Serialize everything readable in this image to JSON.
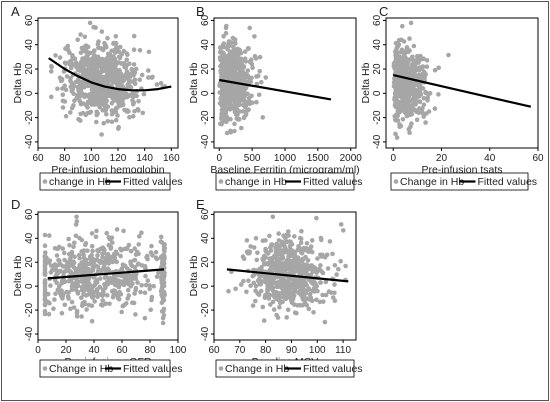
{
  "figure": {
    "colors": {
      "points": "#a6a6a6",
      "fit": "#000000",
      "frame": "#000000",
      "background": "#ffffff",
      "outer_frame": "#555555"
    }
  },
  "chart_data": [
    {
      "type": "scatter",
      "panel_letter": "A",
      "xlabel": "Pre-infusion hemoglobin",
      "ylabel": "Delta Hb",
      "xlim": [
        60,
        165
      ],
      "ylim": [
        -45,
        62
      ],
      "xticks": [
        60,
        80,
        100,
        120,
        140,
        160
      ],
      "yticks": [
        -40,
        -20,
        0,
        20,
        40,
        60
      ],
      "series": [
        {
          "name": "change in Hb",
          "kind": "points",
          "distribution": {
            "x_range": [
              70,
              155
            ],
            "x_center": 108,
            "x_spread": 15,
            "y_center": 10,
            "y_spread": 15,
            "y_min": -38,
            "y_max": 58,
            "count": 650
          }
        },
        {
          "name": "Fitted values",
          "kind": "line",
          "x": [
            68,
            80,
            90,
            100,
            110,
            120,
            130,
            140,
            150,
            160
          ],
          "y": [
            29,
            20,
            14,
            9,
            5.5,
            3.5,
            2.5,
            2.5,
            3.5,
            5.5
          ]
        }
      ],
      "legend": {
        "position": "bottom",
        "items": [
          "change in Hb",
          "Fitted values"
        ]
      }
    },
    {
      "type": "scatter",
      "panel_letter": "B",
      "xlabel": "Baseline Ferritin (microgram/ml)",
      "ylabel": "Delta Hb",
      "xlim": [
        -80,
        2080
      ],
      "ylim": [
        -45,
        62
      ],
      "xticks": [
        0,
        500,
        1000,
        1500,
        2000
      ],
      "yticks": [
        -40,
        -20,
        0,
        20,
        40,
        60
      ],
      "series": [
        {
          "name": "change in Hb",
          "kind": "points",
          "distribution": {
            "x_range": [
              0,
              1700
            ],
            "x_center": 120,
            "x_spread": 220,
            "y_center": 9,
            "y_spread": 15,
            "y_min": -38,
            "y_max": 58,
            "count": 600
          }
        },
        {
          "name": "Fitted values",
          "kind": "line",
          "x": [
            0,
            1700
          ],
          "y": [
            11,
            -5
          ]
        }
      ],
      "legend": {
        "position": "bottom",
        "items": [
          "change in Hb",
          "Fitted values"
        ]
      }
    },
    {
      "type": "scatter",
      "panel_letter": "C",
      "xlabel": "Pre-infusion tsats",
      "ylabel": "Delta Hb",
      "xlim": [
        -3,
        60
      ],
      "ylim": [
        -45,
        62
      ],
      "xticks": [
        0,
        20,
        40,
        60
      ],
      "yticks": [
        -40,
        -20,
        0,
        20,
        40,
        60
      ],
      "series": [
        {
          "name": "Change in Hb",
          "kind": "points",
          "distribution": {
            "x_range": [
              0,
              57
            ],
            "x_center": 10,
            "x_spread": 6,
            "y_center": 9,
            "y_spread": 15,
            "y_min": -40,
            "y_max": 58,
            "count": 600
          }
        },
        {
          "name": "Fitted values",
          "kind": "line",
          "x": [
            0,
            57
          ],
          "y": [
            15,
            -11
          ]
        }
      ],
      "legend": {
        "position": "bottom",
        "items": [
          "Change in Hb",
          "Fitted values"
        ]
      }
    },
    {
      "type": "scatter",
      "panel_letter": "D",
      "xlabel": "Pre-infusion eGFR",
      "ylabel": "Delta Hb",
      "xlim": [
        0,
        100
      ],
      "ylim": [
        -45,
        62
      ],
      "xticks": [
        0,
        20,
        40,
        60,
        80,
        100
      ],
      "yticks": [
        -40,
        -20,
        0,
        20,
        40,
        60
      ],
      "series": [
        {
          "name": "Change in Hb",
          "kind": "points",
          "distribution": {
            "x_range": [
              5,
              90
            ],
            "x_center": 40,
            "x_spread": 22,
            "y_center": 10,
            "y_spread": 15,
            "y_min": -38,
            "y_max": 58,
            "count": 620
          }
        },
        {
          "name": "Fitted values",
          "kind": "line",
          "x": [
            7,
            90
          ],
          "y": [
            6.5,
            14
          ]
        }
      ],
      "legend": {
        "position": "bottom",
        "items": [
          "Change in Hb",
          "Fitted values"
        ]
      }
    },
    {
      "type": "scatter",
      "panel_letter": "E",
      "xlabel": "Baseline MCV",
      "ylabel": "Delta Hb",
      "xlim": [
        60,
        115
      ],
      "ylim": [
        -45,
        62
      ],
      "xticks": [
        60,
        70,
        80,
        90,
        100,
        110
      ],
      "yticks": [
        -40,
        -20,
        0,
        20,
        40,
        60
      ],
      "series": [
        {
          "name": "Change in Hb",
          "kind": "points",
          "distribution": {
            "x_range": [
              63,
              112
            ],
            "x_center": 89,
            "x_spread": 8,
            "y_center": 10,
            "y_spread": 15,
            "y_min": -38,
            "y_max": 58,
            "count": 620
          }
        },
        {
          "name": "Fitted values",
          "kind": "line",
          "x": [
            65,
            112
          ],
          "y": [
            14,
            4
          ]
        }
      ],
      "legend": {
        "position": "bottom",
        "items": [
          "Change in Hb",
          "Fitted values"
        ]
      }
    }
  ]
}
